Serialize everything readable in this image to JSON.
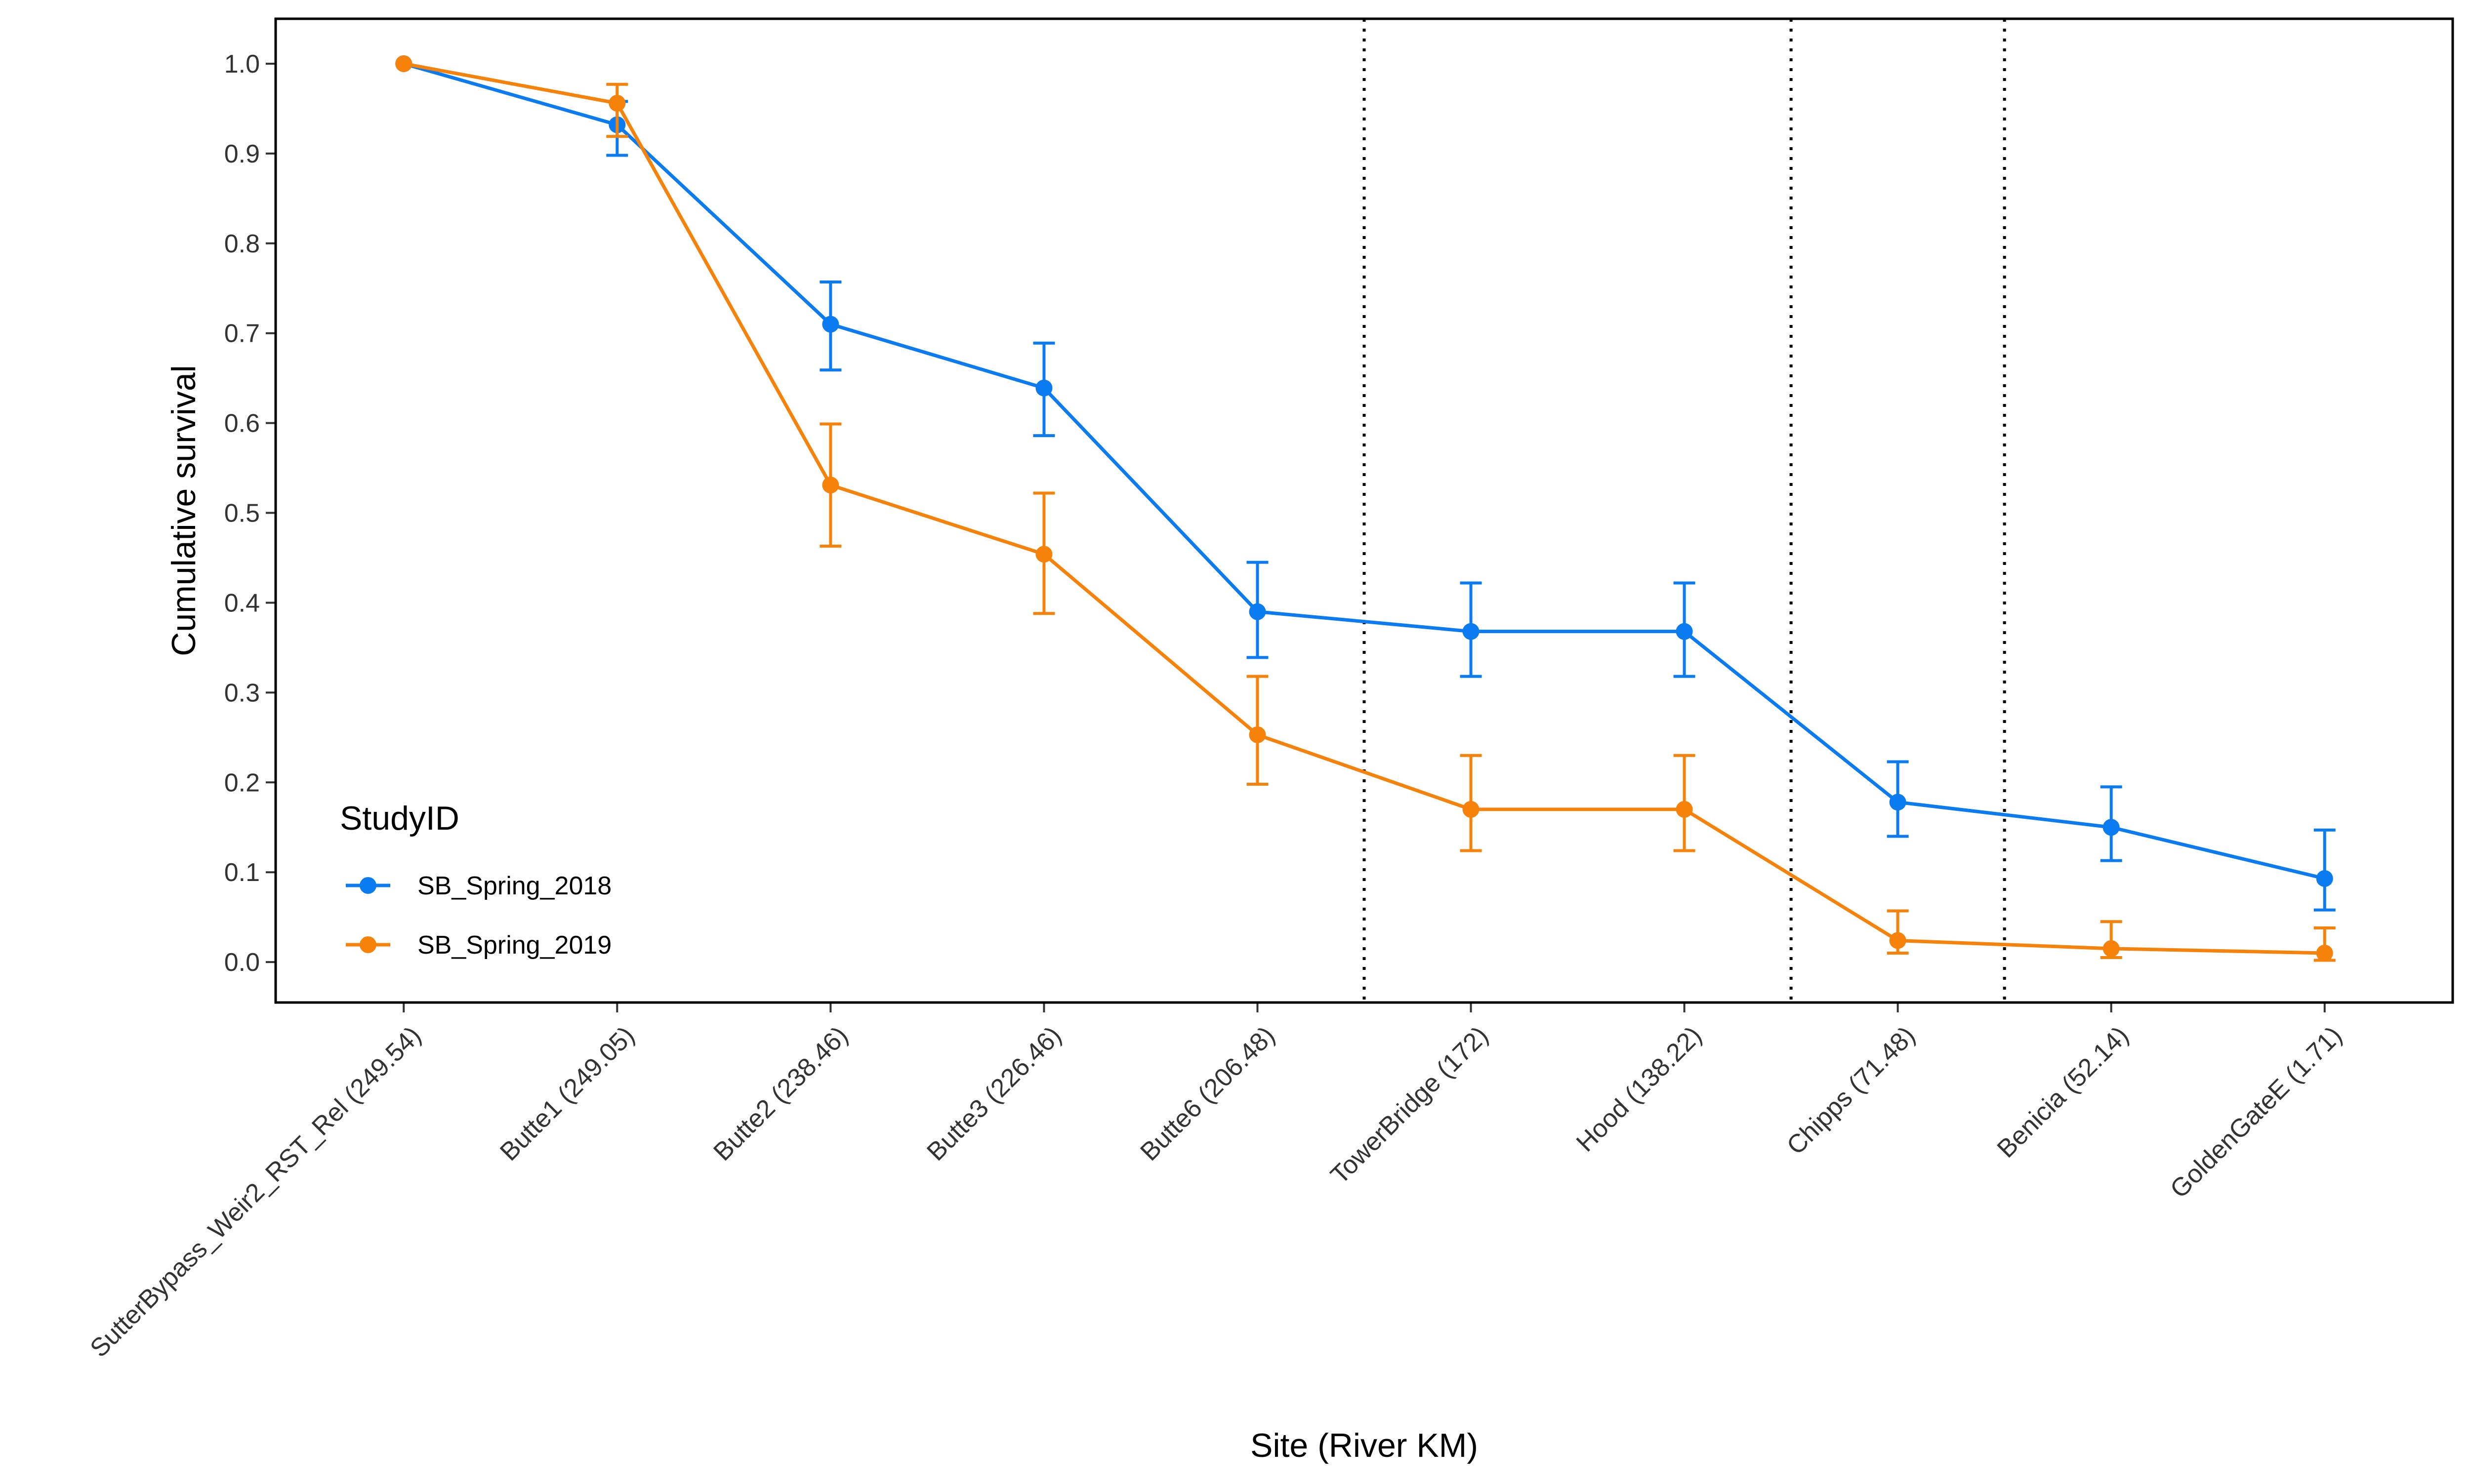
{
  "chart_data": {
    "type": "line",
    "title": "",
    "xlabel": "Site (River KM)",
    "ylabel": "Cumulative survival",
    "categories": [
      "SutterBypass_Weir2_RST_Rel (249.54)",
      "Butte1 (249.05)",
      "Butte2 (238.46)",
      "Butte3 (226.46)",
      "Butte6 (206.48)",
      "TowerBridge (172)",
      "Hood (138.22)",
      "Chipps (71.48)",
      "Benicia (52.14)",
      "GoldenGateE (1.71)"
    ],
    "ylim": [
      -0.045,
      1.05
    ],
    "yticks": [
      "0.0",
      "0.1",
      "0.2",
      "0.3",
      "0.4",
      "0.5",
      "0.6",
      "0.7",
      "0.8",
      "0.9",
      "1.0"
    ],
    "vlines_between_categories": [
      4.5,
      6.5,
      7.5
    ],
    "grid": false,
    "legend": {
      "title": "StudyID",
      "position": "bottom-left"
    },
    "series": [
      {
        "name": "SB_Spring_2018",
        "color": "#0A7BF0",
        "values": [
          1.0,
          0.932,
          0.71,
          0.639,
          0.39,
          0.368,
          0.368,
          0.178,
          0.15,
          0.093
        ],
        "lower": [
          null,
          0.898,
          0.659,
          0.586,
          0.339,
          0.318,
          0.318,
          0.14,
          0.113,
          0.058
        ],
        "upper": [
          null,
          0.958,
          0.757,
          0.689,
          0.445,
          0.422,
          0.422,
          0.223,
          0.195,
          0.147
        ]
      },
      {
        "name": "SB_Spring_2019",
        "color": "#F7820A",
        "values": [
          1.0,
          0.956,
          0.531,
          0.454,
          0.253,
          0.17,
          0.17,
          0.024,
          0.015,
          0.01
        ],
        "lower": [
          null,
          0.919,
          0.463,
          0.388,
          0.198,
          0.124,
          0.124,
          0.01,
          0.005,
          0.002
        ],
        "upper": [
          null,
          0.977,
          0.599,
          0.522,
          0.318,
          0.23,
          0.23,
          0.057,
          0.045,
          0.038
        ]
      }
    ]
  }
}
